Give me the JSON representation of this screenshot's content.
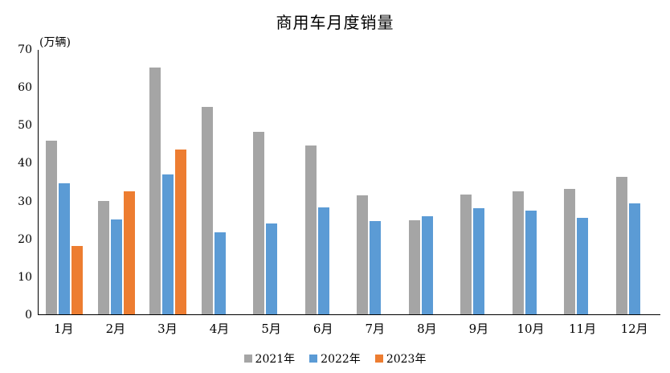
{
  "chart_data": {
    "type": "bar",
    "title": "商用车月度销量",
    "unit_label": "(万辆)",
    "xlabel": "",
    "ylabel": "万辆",
    "ylim": [
      0,
      70
    ],
    "yticks": [
      0,
      10,
      20,
      30,
      40,
      50,
      60,
      70
    ],
    "grid": false,
    "legend_position": "bottom",
    "categories": [
      "1月",
      "2月",
      "3月",
      "4月",
      "5月",
      "6月",
      "7月",
      "8月",
      "9月",
      "10月",
      "11月",
      "12月"
    ],
    "series": [
      {
        "name": "2021年",
        "color": "#A5A5A5",
        "values": [
          45.9,
          30.0,
          65.1,
          54.8,
          48.1,
          44.5,
          31.3,
          24.8,
          31.7,
          32.5,
          33.0,
          36.3
        ]
      },
      {
        "name": "2022年",
        "color": "#5B9BD5",
        "values": [
          34.5,
          25.0,
          37.0,
          21.7,
          23.9,
          28.2,
          24.5,
          25.9,
          28.0,
          27.4,
          25.5,
          29.3
        ]
      },
      {
        "name": "2023年",
        "color": "#ED7D31",
        "values": [
          18.1,
          32.4,
          43.5,
          null,
          null,
          null,
          null,
          null,
          null,
          null,
          null,
          null
        ]
      }
    ]
  }
}
